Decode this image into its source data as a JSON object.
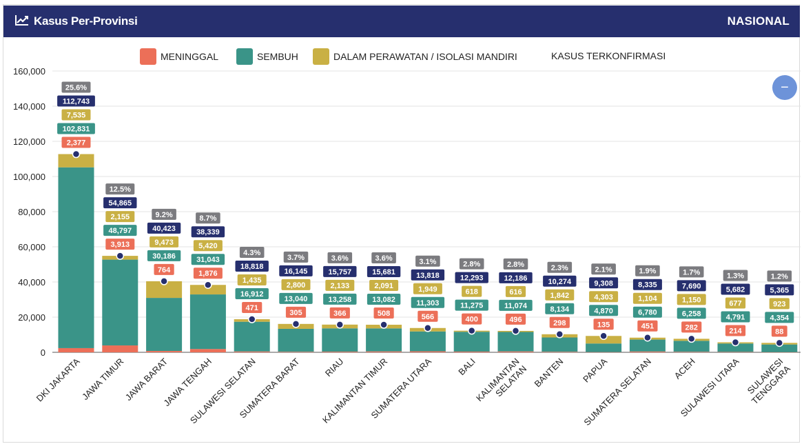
{
  "header": {
    "title": "Kasus Per-Provinsi",
    "right_label": "NASIONAL",
    "icon": "line-chart-icon"
  },
  "legend": [
    {
      "key": "meninggal",
      "label": "MENINGGAL",
      "color": "#ec6f58"
    },
    {
      "key": "sembuh",
      "label": "SEMBUH",
      "color": "#3a9488"
    },
    {
      "key": "perawatan",
      "label": "DALAM PERAWATAN / ISOLASI MANDIRI",
      "color": "#c9b044"
    },
    {
      "key": "terkonfirmasi",
      "label": "KASUS TERKONFIRMASI",
      "color": null
    }
  ],
  "zoom_button": {
    "label": "−",
    "icon": "minus-icon"
  },
  "chart_data": {
    "type": "bar",
    "stacked": true,
    "categories": [
      [
        "DKI JAKARTA"
      ],
      [
        "JAWA TIMUR"
      ],
      [
        "JAWA BARAT"
      ],
      [
        "JAWA TENGAH"
      ],
      [
        "SULAWESI SELATAN"
      ],
      [
        "SUMATERA BARAT"
      ],
      [
        "RIAU"
      ],
      [
        "KALIMANTAN TIMUR"
      ],
      [
        "SUMATERA UTARA"
      ],
      [
        "BALI"
      ],
      [
        "KALIMANTAN",
        "SELATAN"
      ],
      [
        "BANTEN"
      ],
      [
        "PAPUA"
      ],
      [
        "SUMATERA SELATAN"
      ],
      [
        "ACEH"
      ],
      [
        "SULAWESI UTARA"
      ],
      [
        "SULAWESI",
        "TENGGARA"
      ]
    ],
    "series": [
      {
        "name": "MENINGGAL",
        "color": "#ec6f58",
        "values": [
          2377,
          3913,
          764,
          1876,
          471,
          305,
          366,
          508,
          566,
          400,
          496,
          298,
          135,
          451,
          282,
          214,
          88
        ]
      },
      {
        "name": "SEMBUH",
        "color": "#3a9488",
        "values": [
          102831,
          48797,
          30186,
          31043,
          16912,
          13040,
          13258,
          13082,
          11303,
          11275,
          11074,
          8134,
          4870,
          6780,
          6258,
          4791,
          4354
        ]
      },
      {
        "name": "DALAM PERAWATAN / ISOLASI MANDIRI",
        "color": "#c9b044",
        "values": [
          7535,
          2155,
          9473,
          5420,
          1435,
          2800,
          2133,
          2091,
          1949,
          618,
          616,
          1842,
          4303,
          1104,
          1150,
          677,
          923
        ]
      }
    ],
    "confirmed": {
      "name": "KASUS TERKONFIRMASI",
      "color": "#262f6e",
      "values": [
        112743,
        54865,
        40423,
        38339,
        18818,
        16145,
        15757,
        15681,
        13818,
        12293,
        12186,
        10274,
        9308,
        8335,
        7690,
        5682,
        5365
      ]
    },
    "percent_labels": [
      "25.6%",
      "12.5%",
      "9.2%",
      "8.7%",
      "4.3%",
      "3.7%",
      "3.6%",
      "3.6%",
      "3.1%",
      "2.8%",
      "2.8%",
      "2.3%",
      "2.1%",
      "1.9%",
      "1.7%",
      "1.3%",
      "1.2%"
    ],
    "percent_color": "#7b7b7f",
    "ylim": [
      0,
      160000
    ],
    "yticks": [
      0,
      20000,
      40000,
      60000,
      80000,
      100000,
      120000,
      140000,
      160000
    ],
    "ytick_labels": [
      "0",
      "20,000",
      "40,000",
      "60,000",
      "80,000",
      "100,000",
      "120,000",
      "140,000",
      "160,000"
    ],
    "grid": true,
    "legend_position": "top-center"
  }
}
